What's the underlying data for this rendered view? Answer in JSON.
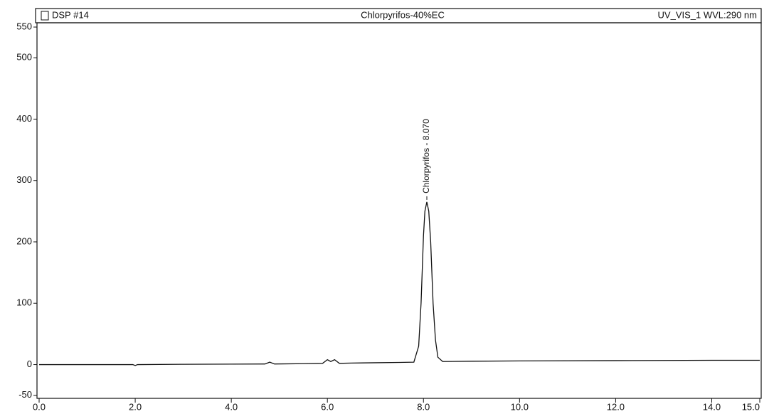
{
  "chart_data": {
    "type": "line",
    "title": "Chlorpyrifos-40%EC",
    "sample_label": "DSP #14",
    "detector_label": "UV_VIS_1 WVL:290 nm",
    "color": "#111111",
    "x": [
      0,
      1.0,
      1.95,
      2.0,
      2.05,
      3.0,
      4.0,
      4.7,
      4.8,
      4.9,
      5.5,
      5.9,
      6.0,
      6.07,
      6.15,
      6.25,
      6.5,
      7.0,
      7.5,
      7.8,
      7.9,
      7.95,
      8.0,
      8.03,
      8.07,
      8.11,
      8.15,
      8.2,
      8.25,
      8.3,
      8.4,
      9.0,
      10.0,
      12.0,
      14.0,
      15.0
    ],
    "values": [
      0,
      0,
      0,
      -1.5,
      0,
      0.5,
      0.8,
      1,
      4,
      1,
      1.5,
      2,
      8,
      5,
      8,
      2,
      2.5,
      3,
      3.5,
      4,
      30,
      100,
      210,
      250,
      265,
      250,
      200,
      100,
      40,
      12,
      5,
      5.5,
      6,
      6.5,
      7,
      7
    ],
    "annotations": [
      {
        "text": "Chlorpyrifos - 8.070",
        "x": 8.07
      }
    ],
    "xlim": [
      0,
      15
    ],
    "ylim": [
      -55,
      557
    ],
    "xticks": [
      {
        "value": 0,
        "label": "0.0"
      },
      {
        "value": 2,
        "label": "2.0"
      },
      {
        "value": 4,
        "label": "4.0"
      },
      {
        "value": 6,
        "label": "6.0"
      },
      {
        "value": 8,
        "label": "8.0"
      },
      {
        "value": 10,
        "label": "10.0"
      },
      {
        "value": 12,
        "label": "12.0"
      },
      {
        "value": 14,
        "label": "14.0"
      },
      {
        "value": 15,
        "label": "15.0"
      }
    ],
    "yticks": [
      -50,
      0,
      100,
      200,
      300,
      400,
      500,
      550
    ],
    "grid": false
  }
}
